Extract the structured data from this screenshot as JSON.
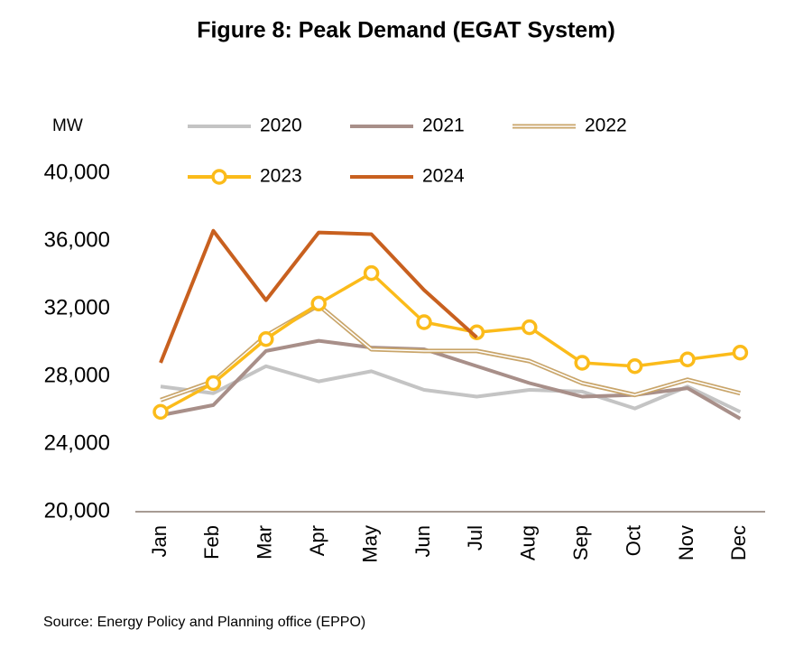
{
  "chart_data": {
    "type": "line",
    "title": "Figure 8: Peak Demand (EGAT System)",
    "y_unit": "MW",
    "source": "Source: Energy Policy and Planning office (EPPO)",
    "categories": [
      "Jan",
      "Feb",
      "Mar",
      "Apr",
      "May",
      "Jun",
      "Jul",
      "Aug",
      "Sep",
      "Oct",
      "Nov",
      "Dec"
    ],
    "ylim": [
      20000,
      40000
    ],
    "yticks": [
      {
        "value": 20000,
        "label": "20,000"
      },
      {
        "value": 24000,
        "label": "24,000"
      },
      {
        "value": 28000,
        "label": "28,000"
      },
      {
        "value": 32000,
        "label": "32,000"
      },
      {
        "value": 36000,
        "label": "36,000"
      },
      {
        "value": 40000,
        "label": "40,000"
      }
    ],
    "grid": false,
    "series": [
      {
        "name": "2020",
        "color": "#c4c4c4",
        "values": [
          27400,
          27000,
          28600,
          27700,
          28300,
          27200,
          26800,
          27200,
          27100,
          26100,
          27400,
          25900
        ]
      },
      {
        "name": "2021",
        "color": "#a88f89",
        "values": [
          25700,
          26300,
          29500,
          30100,
          29700,
          29600,
          28600,
          27600,
          26800,
          26900,
          27300,
          25500
        ]
      },
      {
        "name": "2022",
        "color": "#c9a56a",
        "line_style": "double",
        "values": [
          26600,
          27700,
          30400,
          32200,
          29600,
          29500,
          29500,
          28900,
          27600,
          26900,
          27800,
          27000
        ]
      },
      {
        "name": "2023",
        "color": "#fbbb1a",
        "marker": "circle",
        "values": [
          25900,
          27600,
          30200,
          32300,
          34100,
          31200,
          30600,
          30900,
          28800,
          28600,
          29000,
          29400
        ]
      },
      {
        "name": "2024",
        "color": "#c8601f",
        "values": [
          28800,
          36600,
          32500,
          36500,
          36400,
          33100,
          30300,
          null,
          null,
          null,
          null,
          null
        ]
      }
    ]
  }
}
